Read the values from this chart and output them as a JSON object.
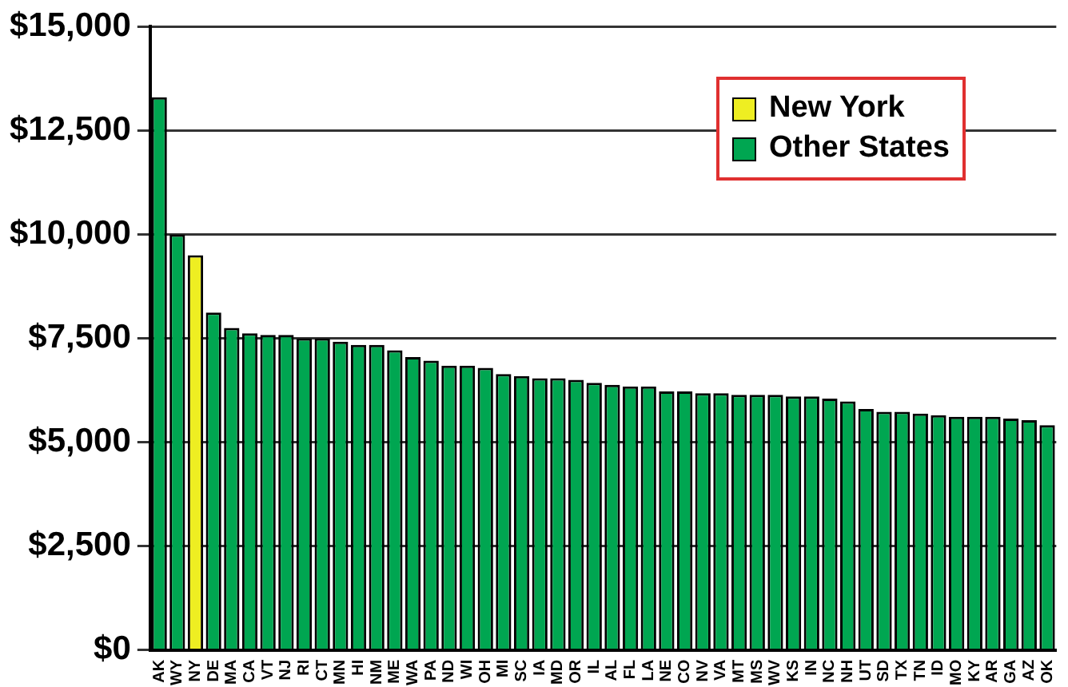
{
  "chart_data": {
    "type": "bar",
    "categories": [
      "AK",
      "WY",
      "NY",
      "DE",
      "MA",
      "CA",
      "VT",
      "NJ",
      "RI",
      "CT",
      "MN",
      "HI",
      "NM",
      "ME",
      "WA",
      "PA",
      "ND",
      "WI",
      "OH",
      "MI",
      "SC",
      "IA",
      "MD",
      "OR",
      "IL",
      "AL",
      "FL",
      "LA",
      "NE",
      "CO",
      "NV",
      "VA",
      "MT",
      "MS",
      "WV",
      "KS",
      "IN",
      "NC",
      "NH",
      "UT",
      "SD",
      "TX",
      "TN",
      "ID",
      "MO",
      "KY",
      "AR",
      "GA",
      "AZ",
      "OK"
    ],
    "series": [
      {
        "name": "New York",
        "color": "#eeee22",
        "values": [
          null,
          null,
          9500,
          null,
          null,
          null,
          null,
          null,
          null,
          null,
          null,
          null,
          null,
          null,
          null,
          null,
          null,
          null,
          null,
          null,
          null,
          null,
          null,
          null,
          null,
          null,
          null,
          null,
          null,
          null,
          null,
          null,
          null,
          null,
          null,
          null,
          null,
          null,
          null,
          null,
          null,
          null,
          null,
          null,
          null,
          null,
          null,
          null,
          null,
          null
        ]
      },
      {
        "name": "Other States",
        "color": "#00a651",
        "values": [
          13300,
          10000,
          null,
          8120,
          7750,
          7620,
          7580,
          7580,
          7500,
          7500,
          7420,
          7340,
          7340,
          7210,
          7050,
          6960,
          6840,
          6840,
          6790,
          6640,
          6590,
          6540,
          6540,
          6500,
          6430,
          6380,
          6340,
          6340,
          6220,
          6220,
          6180,
          6180,
          6140,
          6140,
          6140,
          6100,
          6100,
          6050,
          5980,
          5800,
          5730,
          5730,
          5690,
          5650,
          5610,
          5610,
          5610,
          5570,
          5530,
          5410
        ]
      }
    ],
    "ylim": [
      0,
      15000
    ],
    "yticks": [
      {
        "value": 0,
        "label": "$0"
      },
      {
        "value": 2500,
        "label": "$2,500"
      },
      {
        "value": 5000,
        "label": "$5,000"
      },
      {
        "value": 7500,
        "label": "$7,500"
      },
      {
        "value": 10000,
        "label": "$10,000"
      },
      {
        "value": 12500,
        "label": "$12,500"
      },
      {
        "value": 15000,
        "label": "$15,000"
      }
    ],
    "grid": "y",
    "legend": "top right"
  }
}
